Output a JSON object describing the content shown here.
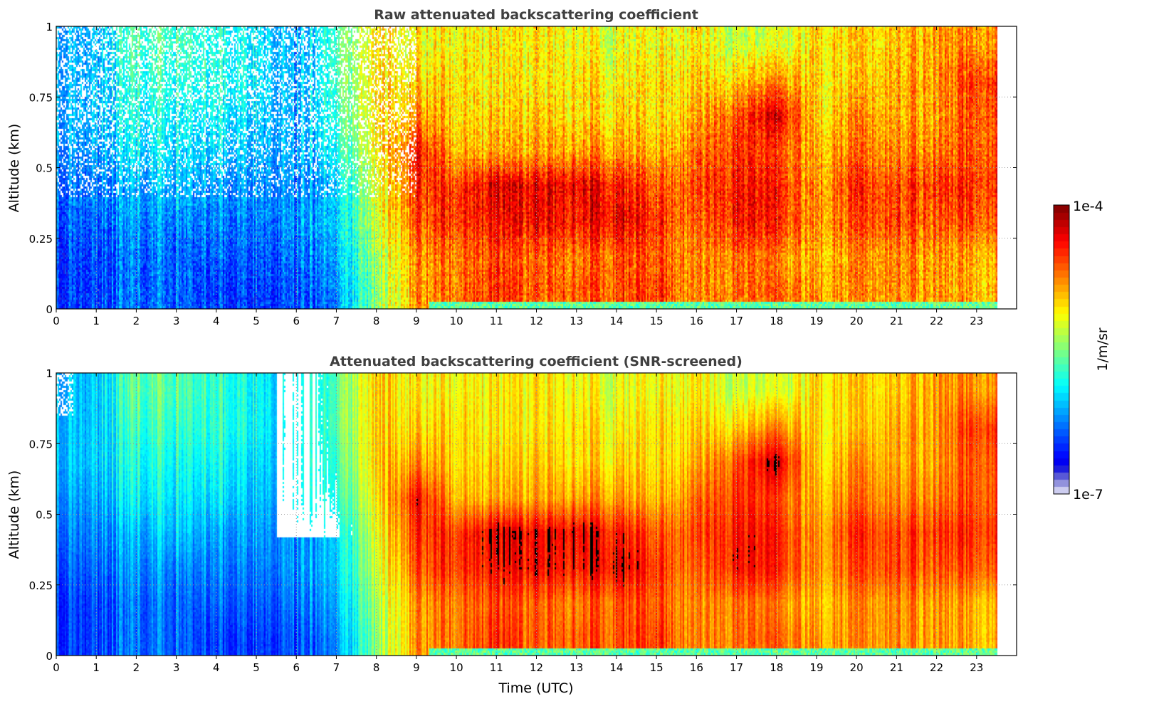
{
  "chart_data": [
    {
      "type": "heatmap",
      "title": "Raw attenuated backscattering coefficient",
      "xlabel": "",
      "ylabel": "Altitude (km)",
      "xlim": [
        0,
        24
      ],
      "ylim": [
        0,
        1
      ],
      "xticks": [
        "0",
        "1",
        "2",
        "3",
        "4",
        "5",
        "6",
        "7",
        "8",
        "9",
        "10",
        "11",
        "12",
        "13",
        "14",
        "15",
        "16",
        "17",
        "18",
        "19",
        "20",
        "21",
        "22",
        "23"
      ],
      "yticks": [
        "0",
        "0.25",
        "0.5",
        "0.75",
        "1"
      ],
      "grid": true,
      "screened": false
    },
    {
      "type": "heatmap",
      "title": "Attenuated backscattering coefficient (SNR-screened)",
      "xlabel": "Time (UTC)",
      "ylabel": "Altitude (km)",
      "xlim": [
        0,
        24
      ],
      "ylim": [
        0,
        1
      ],
      "xticks": [
        "0",
        "1",
        "2",
        "3",
        "4",
        "5",
        "6",
        "7",
        "8",
        "9",
        "10",
        "11",
        "12",
        "13",
        "14",
        "15",
        "16",
        "17",
        "18",
        "19",
        "20",
        "21",
        "22",
        "23"
      ],
      "yticks": [
        "0",
        "0.25",
        "0.5",
        "0.75",
        "1"
      ],
      "grid": true,
      "screened": true
    }
  ],
  "colorbar": {
    "label": "1/m/sr",
    "max_label": "1e-4",
    "min_label": "1e-7",
    "log10_range": [
      -7,
      -4
    ]
  },
  "field": {
    "units": "log10(1/m/sr)",
    "data_end_hour": 23.5,
    "altitude_bin_centers_km": [
      0.06,
      0.19,
      0.31,
      0.44,
      0.56,
      0.69,
      0.81,
      0.94
    ],
    "hours": [
      0,
      1,
      2,
      3,
      4,
      5,
      6,
      7,
      8,
      9,
      10,
      11,
      12,
      13,
      14,
      15,
      16,
      17,
      18,
      19,
      20,
      21,
      22,
      23
    ],
    "log10_values_by_hour": [
      [
        -6.4,
        -6.4,
        -6.3,
        -6.2,
        -6.1,
        -6.0,
        -6.0,
        -6.0
      ],
      [
        -6.4,
        -6.4,
        -6.3,
        -6.2,
        -6.1,
        -6.0,
        -6.0,
        -6.0
      ],
      [
        -6.3,
        -6.3,
        -6.2,
        -6.1,
        -5.9,
        -5.8,
        -5.7,
        -5.6
      ],
      [
        -6.3,
        -6.3,
        -6.2,
        -6.0,
        -5.9,
        -5.8,
        -5.7,
        -5.6
      ],
      [
        -6.4,
        -6.3,
        -6.2,
        -6.1,
        -5.9,
        -5.8,
        -5.7,
        -5.7
      ],
      [
        -6.4,
        -6.3,
        -6.2,
        -6.1,
        -6.0,
        -5.9,
        -5.8,
        -5.8
      ],
      [
        -6.4,
        -6.3,
        -6.2,
        -6.2,
        -6.1,
        -6.1,
        -6.1,
        -6.1
      ],
      [
        -6.2,
        -6.1,
        -6.0,
        -6.0,
        -5.8,
        -5.7,
        -5.6,
        -5.6
      ],
      [
        -5.5,
        -5.4,
        -5.3,
        -5.2,
        -5.1,
        -5.0,
        -5.0,
        -5.0
      ],
      [
        -4.8,
        -4.8,
        -4.6,
        -4.5,
        -4.4,
        -4.8,
        -5.0,
        -5.1
      ],
      [
        -4.7,
        -4.7,
        -4.5,
        -4.5,
        -4.9,
        -5.0,
        -5.0,
        -5.1
      ],
      [
        -4.5,
        -4.6,
        -4.4,
        -4.3,
        -4.9,
        -5.0,
        -5.1,
        -5.1
      ],
      [
        -4.7,
        -4.7,
        -4.4,
        -4.4,
        -4.9,
        -5.0,
        -5.1,
        -5.1
      ],
      [
        -4.6,
        -4.7,
        -4.4,
        -4.3,
        -4.8,
        -5.0,
        -5.0,
        -5.1
      ],
      [
        -4.6,
        -4.6,
        -4.3,
        -4.4,
        -4.8,
        -5.0,
        -5.1,
        -5.2
      ],
      [
        -4.5,
        -4.6,
        -4.5,
        -4.6,
        -4.9,
        -5.0,
        -5.0,
        -5.1
      ],
      [
        -4.8,
        -4.8,
        -4.7,
        -4.6,
        -4.7,
        -4.9,
        -5.0,
        -5.1
      ],
      [
        -4.7,
        -4.7,
        -4.4,
        -4.4,
        -4.5,
        -4.6,
        -5.0,
        -5.3
      ],
      [
        -4.7,
        -4.8,
        -4.5,
        -4.5,
        -4.6,
        -4.3,
        -4.8,
        -5.3
      ],
      [
        -4.8,
        -4.9,
        -4.8,
        -4.8,
        -4.9,
        -5.0,
        -5.0,
        -5.0
      ],
      [
        -4.8,
        -4.8,
        -4.6,
        -4.5,
        -4.7,
        -4.8,
        -5.0,
        -5.0
      ],
      [
        -4.8,
        -4.8,
        -4.6,
        -4.6,
        -4.8,
        -4.9,
        -4.9,
        -5.0
      ],
      [
        -4.8,
        -4.8,
        -4.6,
        -4.5,
        -4.7,
        -4.8,
        -4.8,
        -4.8
      ],
      [
        -4.9,
        -4.9,
        -4.6,
        -4.5,
        -4.6,
        -4.6,
        -4.5,
        -4.8
      ]
    ]
  }
}
